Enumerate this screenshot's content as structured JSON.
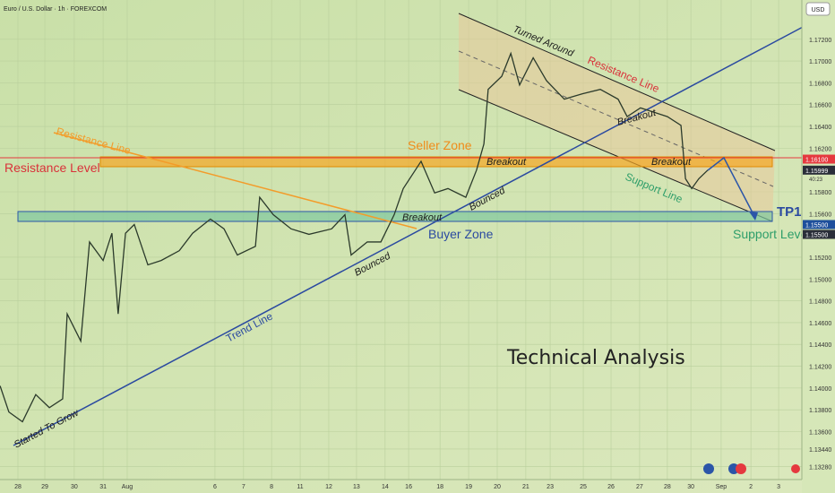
{
  "chart_data": {
    "type": "line",
    "title": "Euro / U.S. Dollar · 1h · FOREXCOM",
    "currency": "USD",
    "countdown": "40:23",
    "grid": true,
    "xlim": [
      -0.633,
      27.69
    ],
    "ylim": [
      1.1316,
      1.1756
    ],
    "yticks": [
      {
        "value": 1.172,
        "label": "1.17200"
      },
      {
        "value": 1.17,
        "label": "1.17000"
      },
      {
        "value": 1.168,
        "label": "1.16800"
      },
      {
        "value": 1.166,
        "label": "1.16600"
      },
      {
        "value": 1.164,
        "label": "1.16400"
      },
      {
        "value": 1.162,
        "label": "1.16200"
      },
      {
        "value": 1.158,
        "label": "1.15800"
      },
      {
        "value": 1.156,
        "label": "1.15600"
      },
      {
        "value": 1.152,
        "label": "1.15200"
      },
      {
        "value": 1.15,
        "label": "1.15000"
      },
      {
        "value": 1.148,
        "label": "1.14800"
      },
      {
        "value": 1.146,
        "label": "1.14600"
      },
      {
        "value": 1.144,
        "label": "1.14400"
      },
      {
        "value": 1.142,
        "label": "1.14200"
      },
      {
        "value": 1.14,
        "label": "1.14000"
      },
      {
        "value": 1.138,
        "label": "1.13800"
      },
      {
        "value": 1.136,
        "label": "1.13600"
      },
      {
        "value": 1.1344,
        "label": "1.13440"
      },
      {
        "value": 1.1328,
        "label": "1.13280"
      }
    ],
    "xticks": [
      {
        "value": 0,
        "label": "28"
      },
      {
        "value": 0.95,
        "label": "29"
      },
      {
        "value": 1.99,
        "label": "30"
      },
      {
        "value": 3.01,
        "label": "31"
      },
      {
        "value": 3.86,
        "label": "Aug"
      },
      {
        "value": 6.96,
        "label": "6"
      },
      {
        "value": 7.97,
        "label": "7"
      },
      {
        "value": 8.96,
        "label": "8"
      },
      {
        "value": 9.97,
        "label": "11"
      },
      {
        "value": 10.98,
        "label": "12"
      },
      {
        "value": 11.96,
        "label": "13"
      },
      {
        "value": 12.97,
        "label": "14"
      },
      {
        "value": 13.8,
        "label": "16"
      },
      {
        "value": 14.91,
        "label": "18"
      },
      {
        "value": 15.92,
        "label": "19"
      },
      {
        "value": 16.93,
        "label": "20"
      },
      {
        "value": 17.94,
        "label": "21"
      },
      {
        "value": 18.8,
        "label": "23"
      },
      {
        "value": 19.97,
        "label": "25"
      },
      {
        "value": 20.95,
        "label": "26"
      },
      {
        "value": 21.96,
        "label": "27"
      },
      {
        "value": 22.94,
        "label": "28"
      },
      {
        "value": 23.77,
        "label": "30"
      },
      {
        "value": 24.84,
        "label": "Sep"
      },
      {
        "value": 25.89,
        "label": "2"
      },
      {
        "value": 26.87,
        "label": "3"
      }
    ],
    "price_labels": [
      {
        "value": 1.161,
        "label": "1.16100",
        "color": "#e5393f"
      },
      {
        "value": 1.15999,
        "label": "1.15999",
        "color": "#2a2e39"
      },
      {
        "value": 1.155,
        "label": "1.15500",
        "color": "#1e4f9c"
      },
      {
        "value": 1.155,
        "label": "1.15500",
        "color": "#2a2e39"
      }
    ],
    "series": [
      {
        "name": "EUR/USD",
        "color": "#2b3a2b",
        "x": [
          -0.63,
          -0.32,
          0.16,
          0.63,
          1.11,
          1.58,
          1.74,
          2.22,
          2.53,
          3.01,
          3.32,
          3.54,
          3.8,
          4.11,
          4.59,
          5.06,
          5.7,
          6.17,
          6.8,
          7.28,
          7.75,
          8.39,
          8.54,
          9.02,
          9.65,
          10.28,
          11.08,
          11.55,
          11.77,
          12.34,
          12.82,
          13.29,
          13.61,
          14.24,
          14.72,
          15.19,
          15.82,
          16.2,
          16.46,
          16.61,
          17.09,
          17.41,
          17.72,
          18.2,
          18.67,
          19.3,
          19.94,
          20.57,
          21.2,
          21.52,
          21.99,
          22.47,
          22.94,
          23.42,
          23.58,
          23.8,
          24.05,
          24.37
        ],
        "values": [
          1.1402,
          1.1378,
          1.1369,
          1.1394,
          1.1382,
          1.139,
          1.1468,
          1.1443,
          1.1534,
          1.1517,
          1.1542,
          1.1468,
          1.1542,
          1.155,
          1.1513,
          1.1517,
          1.1526,
          1.1542,
          1.1555,
          1.1546,
          1.1522,
          1.153,
          1.1575,
          1.1559,
          1.1546,
          1.1541,
          1.1546,
          1.1559,
          1.1522,
          1.1534,
          1.1534,
          1.1559,
          1.1583,
          1.1608,
          1.1579,
          1.1583,
          1.1575,
          1.16,
          1.1624,
          1.1674,
          1.1686,
          1.1707,
          1.1678,
          1.1703,
          1.1682,
          1.1665,
          1.167,
          1.1674,
          1.1665,
          1.1649,
          1.1657,
          1.1653,
          1.1649,
          1.1641,
          1.1592,
          1.1583,
          1.1592,
          1.16
        ]
      }
    ],
    "annotations": [
      "Resistance Level",
      "Resistance Line",
      "Seller Zone",
      "Buyer Zone",
      "Trend Line",
      "Started To Grow",
      "Bounced",
      "Breakout",
      "Bounced",
      "Breakout",
      "Turned Around",
      "Resistance Line",
      "Breakout",
      "Breakout",
      "Support Line",
      "TP1",
      "Support Level",
      "Technical Analysis"
    ]
  }
}
